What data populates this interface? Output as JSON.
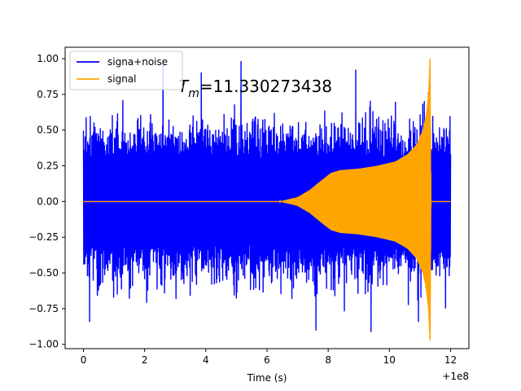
{
  "chart_data": {
    "type": "line",
    "xlabel": "Time (s)",
    "ylabel": "",
    "x_offset_label": "+1e8",
    "xlim": [
      -0.6,
      12.6
    ],
    "ylim": [
      -1.03,
      1.08
    ],
    "x_ticks": [
      0,
      2,
      4,
      6,
      8,
      10,
      12
    ],
    "x_tick_labels": [
      "0",
      "2",
      "4",
      "6",
      "8",
      "10",
      "12"
    ],
    "y_ticks": [
      -1.0,
      -0.75,
      -0.5,
      -0.25,
      0.0,
      0.25,
      0.5,
      0.75,
      1.0
    ],
    "y_tick_labels": [
      "−1.00",
      "−0.75",
      "−0.50",
      "−0.25",
      "0.00",
      "0.25",
      "0.50",
      "0.75",
      "1.00"
    ],
    "grid": false,
    "legend_position": "top-left",
    "annotation": {
      "symbol": "T",
      "subscript": "m",
      "value_text": "=11.330273438",
      "x": 3.1,
      "y": 0.8
    },
    "series": [
      {
        "name": "signa+noise",
        "color": "#0000ff",
        "description_points": {
          "x_range": [
            0.0,
            12.0
          ],
          "typical_amplitude": 0.45,
          "max_peaks": [
            [
              2.6,
              1.0
            ],
            [
              5.15,
              0.98
            ],
            [
              8.9,
              0.92
            ],
            [
              3.85,
              0.9
            ]
          ],
          "min_peaks": [
            [
              7.6,
              -0.9
            ],
            [
              9.4,
              -0.91
            ],
            [
              0.2,
              -0.84
            ],
            [
              10.95,
              -0.84
            ]
          ]
        }
      },
      {
        "name": "signal",
        "color": "#ffa500",
        "envelope": {
          "x": [
            0,
            6.4,
            7.0,
            7.4,
            7.8,
            8.1,
            8.4,
            9.0,
            9.6,
            10.2,
            10.6,
            10.9,
            11.1,
            11.2,
            11.28,
            11.33,
            11.36,
            11.4,
            12.0
          ],
          "amplitude": [
            0.0,
            0.0,
            0.03,
            0.08,
            0.15,
            0.2,
            0.22,
            0.23,
            0.25,
            0.28,
            0.33,
            0.4,
            0.5,
            0.6,
            0.75,
            1.0,
            0.0,
            0.0,
            0.0
          ]
        },
        "peak_max": [
          11.33,
          1.0
        ],
        "peak_min": [
          11.33,
          -0.78
        ]
      }
    ]
  }
}
